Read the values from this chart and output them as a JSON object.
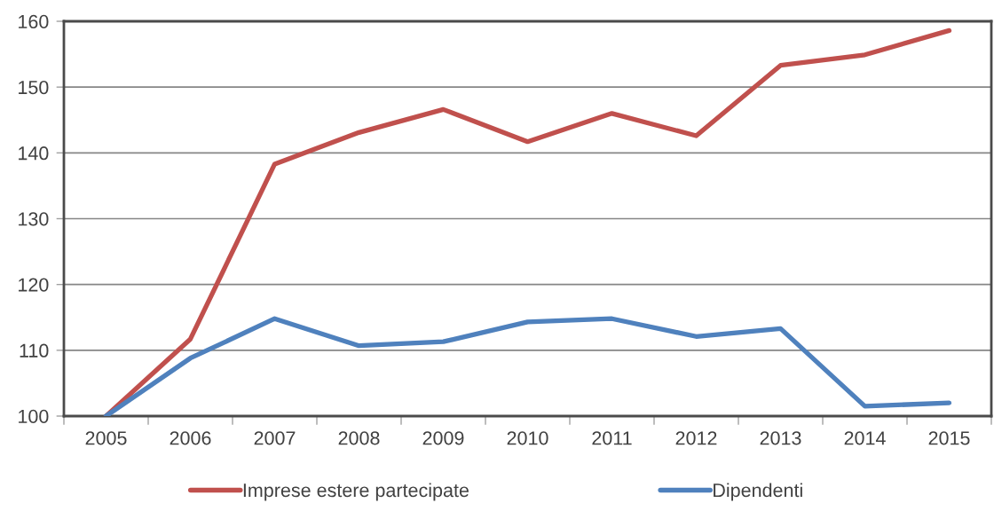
{
  "chart_data": {
    "type": "line",
    "categories": [
      "2005",
      "2006",
      "2007",
      "2008",
      "2009",
      "2010",
      "2011",
      "2012",
      "2013",
      "2014",
      "2015"
    ],
    "series": [
      {
        "name": "Imprese estere partecipate",
        "color": "#c0504d",
        "values": [
          100,
          111.7,
          138.3,
          143.1,
          146.6,
          141.7,
          146.0,
          142.6,
          153.3,
          154.9,
          158.6
        ]
      },
      {
        "name": "Dipendenti",
        "color": "#4f81bd",
        "values": [
          100,
          108.8,
          114.8,
          110.7,
          111.3,
          114.3,
          114.8,
          112.1,
          113.3,
          101.5,
          102.0
        ]
      }
    ],
    "ylim": [
      100,
      160
    ],
    "yticks": [
      100,
      110,
      120,
      130,
      140,
      150,
      160
    ],
    "grid": "y",
    "legend": "bottom",
    "line_style": "solid",
    "marker": "none"
  }
}
